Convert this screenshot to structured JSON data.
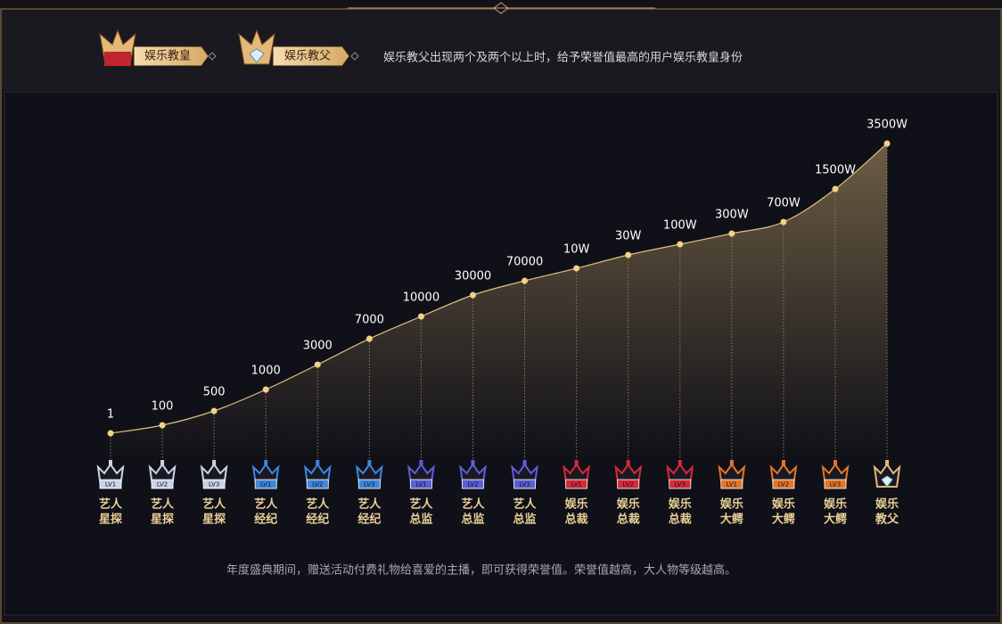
{
  "header": {
    "badges": [
      {
        "label": "娱乐教皇"
      },
      {
        "label": "娱乐教父"
      }
    ],
    "notice": "娱乐教父出现两个及两个以上时，给予荣誉值最高的用户娱乐教皇身份"
  },
  "levels": [
    {
      "threshold": "1",
      "name": [
        "艺人",
        "星探"
      ],
      "badge": "LV1"
    },
    {
      "threshold": "100",
      "name": [
        "艺人",
        "星探"
      ],
      "badge": "LV2"
    },
    {
      "threshold": "500",
      "name": [
        "艺人",
        "星探"
      ],
      "badge": "LV3"
    },
    {
      "threshold": "1000",
      "name": [
        "艺人",
        "经纪"
      ],
      "badge": "LV1"
    },
    {
      "threshold": "3000",
      "name": [
        "艺人",
        "经纪"
      ],
      "badge": "LV2"
    },
    {
      "threshold": "7000",
      "name": [
        "艺人",
        "经纪"
      ],
      "badge": "LV3"
    },
    {
      "threshold": "10000",
      "name": [
        "艺人",
        "总监"
      ],
      "badge": "LV1"
    },
    {
      "threshold": "30000",
      "name": [
        "艺人",
        "总监"
      ],
      "badge": "LV2"
    },
    {
      "threshold": "70000",
      "name": [
        "艺人",
        "总监"
      ],
      "badge": "LV3"
    },
    {
      "threshold": "10W",
      "name": [
        "娱乐",
        "总裁"
      ],
      "badge": "LV1"
    },
    {
      "threshold": "30W",
      "name": [
        "娱乐",
        "总裁"
      ],
      "badge": "LV2"
    },
    {
      "threshold": "100W",
      "name": [
        "娱乐",
        "总裁"
      ],
      "badge": "LV3"
    },
    {
      "threshold": "300W",
      "name": [
        "娱乐",
        "大鳄"
      ],
      "badge": "LV1"
    },
    {
      "threshold": "700W",
      "name": [
        "娱乐",
        "大鳄"
      ],
      "badge": "LV2"
    },
    {
      "threshold": "1500W",
      "name": [
        "娱乐",
        "大鳄"
      ],
      "badge": "LV3"
    },
    {
      "threshold": "3500W",
      "name": [
        "娱乐",
        "教父"
      ]
    }
  ],
  "footer": "年度盛典期间，赠送活动付费礼物给喜爱的主播，即可获得荣誉值。荣誉值越高，大人物等级越高。"
}
